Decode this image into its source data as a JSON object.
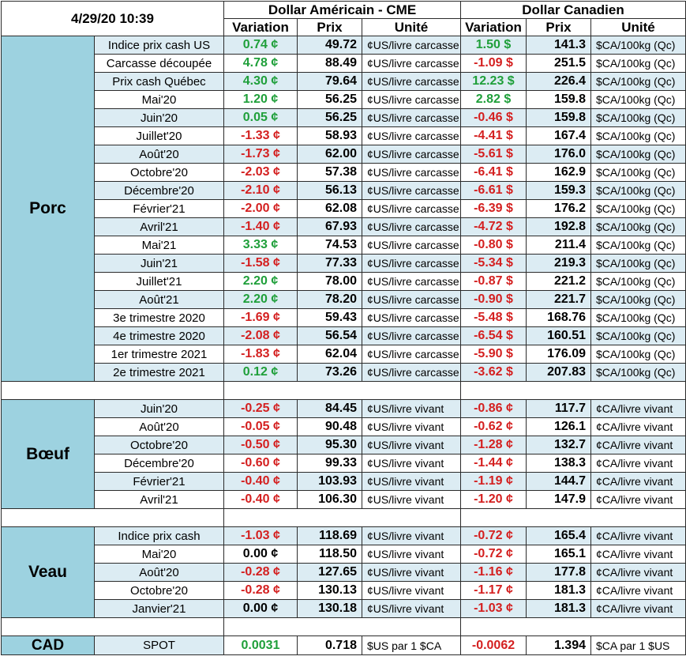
{
  "header": {
    "timestamp": "4/29/20 10:39",
    "usd_group": "Dollar Américain - CME",
    "cad_group": "Dollar Canadien",
    "col_variation": "Variation",
    "col_price": "Prix",
    "col_unit": "Unité"
  },
  "colors": {
    "positive": "#1f9f3a",
    "negative": "#d42020",
    "group_bg": "#9dd2e0",
    "row_alt_bg": "#dcecf3"
  },
  "sections": [
    {
      "name": "Porc",
      "rows": [
        {
          "label": "Indice prix cash US",
          "usd_var": "0.74 ¢",
          "usd_price": "49.72",
          "usd_unit": "¢US/livre carcasse",
          "cad_var": "1.50 $",
          "cad_price": "141.3",
          "cad_unit": "$CA/100kg (Qc)",
          "usd_sign": "pos",
          "cad_sign": "pos"
        },
        {
          "label": "Carcasse découpée",
          "usd_var": "4.78 ¢",
          "usd_price": "88.49",
          "usd_unit": "¢US/livre carcasse",
          "cad_var": "-1.09 $",
          "cad_price": "251.5",
          "cad_unit": "$CA/100kg (Qc)",
          "usd_sign": "pos",
          "cad_sign": "neg"
        },
        {
          "label": "Prix cash Québec",
          "usd_var": "4.30 ¢",
          "usd_price": "79.64",
          "usd_unit": "¢US/livre carcasse",
          "cad_var": "12.23 $",
          "cad_price": "226.4",
          "cad_unit": "$CA/100kg (Qc)",
          "usd_sign": "pos",
          "cad_sign": "pos"
        },
        {
          "label": "Mai'20",
          "usd_var": "1.20 ¢",
          "usd_price": "56.25",
          "usd_unit": "¢US/livre carcasse",
          "cad_var": "2.82 $",
          "cad_price": "159.8",
          "cad_unit": "$CA/100kg (Qc)",
          "usd_sign": "pos",
          "cad_sign": "pos"
        },
        {
          "label": "Juin'20",
          "usd_var": "0.05 ¢",
          "usd_price": "56.25",
          "usd_unit": "¢US/livre carcasse",
          "cad_var": "-0.46 $",
          "cad_price": "159.8",
          "cad_unit": "$CA/100kg (Qc)",
          "usd_sign": "pos",
          "cad_sign": "neg"
        },
        {
          "label": "Juillet'20",
          "usd_var": "-1.33 ¢",
          "usd_price": "58.93",
          "usd_unit": "¢US/livre carcasse",
          "cad_var": "-4.41 $",
          "cad_price": "167.4",
          "cad_unit": "$CA/100kg (Qc)",
          "usd_sign": "neg",
          "cad_sign": "neg"
        },
        {
          "label": "Août'20",
          "usd_var": "-1.73 ¢",
          "usd_price": "62.00",
          "usd_unit": "¢US/livre carcasse",
          "cad_var": "-5.61 $",
          "cad_price": "176.0",
          "cad_unit": "$CA/100kg (Qc)",
          "usd_sign": "neg",
          "cad_sign": "neg"
        },
        {
          "label": "Octobre'20",
          "usd_var": "-2.03 ¢",
          "usd_price": "57.38",
          "usd_unit": "¢US/livre carcasse",
          "cad_var": "-6.41 $",
          "cad_price": "162.9",
          "cad_unit": "$CA/100kg (Qc)",
          "usd_sign": "neg",
          "cad_sign": "neg"
        },
        {
          "label": "Décembre'20",
          "usd_var": "-2.10 ¢",
          "usd_price": "56.13",
          "usd_unit": "¢US/livre carcasse",
          "cad_var": "-6.61 $",
          "cad_price": "159.3",
          "cad_unit": "$CA/100kg (Qc)",
          "usd_sign": "neg",
          "cad_sign": "neg"
        },
        {
          "label": "Février'21",
          "usd_var": "-2.00 ¢",
          "usd_price": "62.08",
          "usd_unit": "¢US/livre carcasse",
          "cad_var": "-6.39 $",
          "cad_price": "176.2",
          "cad_unit": "$CA/100kg (Qc)",
          "usd_sign": "neg",
          "cad_sign": "neg"
        },
        {
          "label": "Avril'21",
          "usd_var": "-1.40 ¢",
          "usd_price": "67.93",
          "usd_unit": "¢US/livre carcasse",
          "cad_var": "-4.72 $",
          "cad_price": "192.8",
          "cad_unit": "$CA/100kg (Qc)",
          "usd_sign": "neg",
          "cad_sign": "neg"
        },
        {
          "label": "Mai'21",
          "usd_var": "3.33 ¢",
          "usd_price": "74.53",
          "usd_unit": "¢US/livre carcasse",
          "cad_var": "-0.80 $",
          "cad_price": "211.4",
          "cad_unit": "$CA/100kg (Qc)",
          "usd_sign": "pos",
          "cad_sign": "neg"
        },
        {
          "label": "Juin'21",
          "usd_var": "-1.58 ¢",
          "usd_price": "77.33",
          "usd_unit": "¢US/livre carcasse",
          "cad_var": "-5.34 $",
          "cad_price": "219.3",
          "cad_unit": "$CA/100kg (Qc)",
          "usd_sign": "neg",
          "cad_sign": "neg"
        },
        {
          "label": "Juillet'21",
          "usd_var": "2.20 ¢",
          "usd_price": "78.00",
          "usd_unit": "¢US/livre carcasse",
          "cad_var": "-0.87 $",
          "cad_price": "221.2",
          "cad_unit": "$CA/100kg (Qc)",
          "usd_sign": "pos",
          "cad_sign": "neg"
        },
        {
          "label": "Août'21",
          "usd_var": "2.20 ¢",
          "usd_price": "78.20",
          "usd_unit": "¢US/livre carcasse",
          "cad_var": "-0.90 $",
          "cad_price": "221.7",
          "cad_unit": "$CA/100kg (Qc)",
          "usd_sign": "pos",
          "cad_sign": "neg"
        },
        {
          "label": "3e trimestre 2020",
          "usd_var": "-1.69 ¢",
          "usd_price": "59.43",
          "usd_unit": "¢US/livre carcasse",
          "cad_var": "-5.48 $",
          "cad_price": "168.76",
          "cad_unit": "$CA/100kg (Qc)",
          "usd_sign": "neg",
          "cad_sign": "neg"
        },
        {
          "label": "4e trimestre 2020",
          "usd_var": "-2.08 ¢",
          "usd_price": "56.54",
          "usd_unit": "¢US/livre carcasse",
          "cad_var": "-6.54 $",
          "cad_price": "160.51",
          "cad_unit": "$CA/100kg (Qc)",
          "usd_sign": "neg",
          "cad_sign": "neg"
        },
        {
          "label": "1er trimestre 2021",
          "usd_var": "-1.83 ¢",
          "usd_price": "62.04",
          "usd_unit": "¢US/livre carcasse",
          "cad_var": "-5.90 $",
          "cad_price": "176.09",
          "cad_unit": "$CA/100kg (Qc)",
          "usd_sign": "neg",
          "cad_sign": "neg"
        },
        {
          "label": "2e trimestre 2021",
          "usd_var": "0.12 ¢",
          "usd_price": "73.26",
          "usd_unit": "¢US/livre carcasse",
          "cad_var": "-3.62 $",
          "cad_price": "207.83",
          "cad_unit": "$CA/100kg (Qc)",
          "usd_sign": "pos",
          "cad_sign": "neg"
        }
      ]
    },
    {
      "name": "Bœuf",
      "rows": [
        {
          "label": "Juin'20",
          "usd_var": "-0.25 ¢",
          "usd_price": "84.45",
          "usd_unit": "¢US/livre vivant",
          "cad_var": "-0.86 ¢",
          "cad_price": "117.7",
          "cad_unit": "¢CA/livre vivant",
          "usd_sign": "neg",
          "cad_sign": "neg"
        },
        {
          "label": "Août'20",
          "usd_var": "-0.05 ¢",
          "usd_price": "90.48",
          "usd_unit": "¢US/livre vivant",
          "cad_var": "-0.62 ¢",
          "cad_price": "126.1",
          "cad_unit": "¢CA/livre vivant",
          "usd_sign": "neg",
          "cad_sign": "neg"
        },
        {
          "label": "Octobre'20",
          "usd_var": "-0.50 ¢",
          "usd_price": "95.30",
          "usd_unit": "¢US/livre vivant",
          "cad_var": "-1.28 ¢",
          "cad_price": "132.7",
          "cad_unit": "¢CA/livre vivant",
          "usd_sign": "neg",
          "cad_sign": "neg"
        },
        {
          "label": "Décembre'20",
          "usd_var": "-0.60 ¢",
          "usd_price": "99.33",
          "usd_unit": "¢US/livre vivant",
          "cad_var": "-1.44 ¢",
          "cad_price": "138.3",
          "cad_unit": "¢CA/livre vivant",
          "usd_sign": "neg",
          "cad_sign": "neg"
        },
        {
          "label": "Février'21",
          "usd_var": "-0.40 ¢",
          "usd_price": "103.93",
          "usd_unit": "¢US/livre vivant",
          "cad_var": "-1.19 ¢",
          "cad_price": "144.7",
          "cad_unit": "¢CA/livre vivant",
          "usd_sign": "neg",
          "cad_sign": "neg"
        },
        {
          "label": "Avril'21",
          "usd_var": "-0.40 ¢",
          "usd_price": "106.30",
          "usd_unit": "¢US/livre vivant",
          "cad_var": "-1.20 ¢",
          "cad_price": "147.9",
          "cad_unit": "¢CA/livre vivant",
          "usd_sign": "neg",
          "cad_sign": "neg"
        }
      ]
    },
    {
      "name": "Veau",
      "rows": [
        {
          "label": "Indice prix cash",
          "usd_var": "-1.03 ¢",
          "usd_price": "118.69",
          "usd_unit": "¢US/livre vivant",
          "cad_var": "-0.72 ¢",
          "cad_price": "165.4",
          "cad_unit": "¢CA/livre vivant",
          "usd_sign": "neg",
          "cad_sign": "neg"
        },
        {
          "label": "Mai'20",
          "usd_var": "0.00 ¢",
          "usd_price": "118.50",
          "usd_unit": "¢US/livre vivant",
          "cad_var": "-0.72 ¢",
          "cad_price": "165.1",
          "cad_unit": "¢CA/livre vivant",
          "usd_sign": "zero",
          "cad_sign": "neg"
        },
        {
          "label": "Août'20",
          "usd_var": "-0.28 ¢",
          "usd_price": "127.65",
          "usd_unit": "¢US/livre vivant",
          "cad_var": "-1.16 ¢",
          "cad_price": "177.8",
          "cad_unit": "¢CA/livre vivant",
          "usd_sign": "neg",
          "cad_sign": "neg"
        },
        {
          "label": "Octobre'20",
          "usd_var": "-0.28 ¢",
          "usd_price": "130.13",
          "usd_unit": "¢US/livre vivant",
          "cad_var": "-1.17 ¢",
          "cad_price": "181.3",
          "cad_unit": "¢CA/livre vivant",
          "usd_sign": "neg",
          "cad_sign": "neg"
        },
        {
          "label": "Janvier'21",
          "usd_var": "0.00 ¢",
          "usd_price": "130.18",
          "usd_unit": "¢US/livre vivant",
          "cad_var": "-1.03 ¢",
          "cad_price": "181.3",
          "cad_unit": "¢CA/livre vivant",
          "usd_sign": "zero",
          "cad_sign": "neg"
        }
      ]
    }
  ],
  "cad": {
    "name": "CAD",
    "label": "SPOT",
    "usd_var": "0.0031",
    "usd_price": "0.718",
    "usd_unit": "$US par 1 $CA",
    "cad_var": "-0.0062",
    "cad_price": "1.394",
    "cad_unit": "$CA par 1 $US",
    "usd_sign": "pos",
    "cad_sign": "neg"
  }
}
